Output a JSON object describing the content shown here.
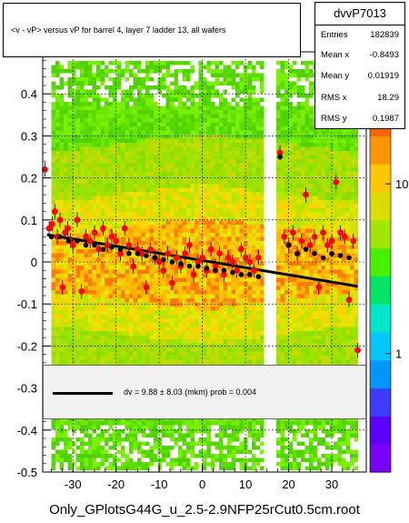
{
  "title": "<v - vP>       versus   vP for barrel 4, layer 7 ladder 13, all wafers",
  "stats": {
    "name": "dvvP7013",
    "rows": [
      {
        "label": "Entries",
        "value": "182839"
      },
      {
        "label": "Mean x",
        "value": "-0.8493"
      },
      {
        "label": "Mean y",
        "value": "0.01919"
      },
      {
        "label": "RMS x",
        "value": "18.29"
      },
      {
        "label": "RMS y",
        "value": "0.1987"
      }
    ]
  },
  "fit_label": "dv =     9.88 ±   8.03 (mkm) prob = 0.004",
  "filename": "Only_GPlotsG44G_u_2.5-2.9NFP25rCut0.5cm.root",
  "chart_data": {
    "type": "scatter",
    "xlim": [
      -37,
      38
    ],
    "ylim": [
      -0.5,
      0.5
    ],
    "x_ticks": [
      -30,
      -20,
      -10,
      0,
      10,
      20,
      30
    ],
    "y_ticks": [
      -0.5,
      -0.4,
      -0.3,
      -0.2,
      -0.1,
      0,
      0.1,
      0.2,
      0.3,
      0.4
    ],
    "z_tick_labels": [
      "1",
      "10"
    ],
    "z_tick_values": [
      1,
      10
    ],
    "grid": true,
    "gap_x": [
      14,
      17
    ],
    "fit": {
      "x": [
        -36,
        36
      ],
      "y": [
        0.065,
        -0.058
      ],
      "color": "#000000"
    },
    "red_points": {
      "x": [
        -36.5,
        -35.5,
        -34.8,
        -34.2,
        -33.6,
        -33,
        -32.4,
        -31.8,
        -31.2,
        -30.6,
        -30,
        -29,
        -28,
        -27,
        -26,
        -25,
        -24,
        -23,
        -22,
        -21,
        -20,
        -19,
        -18,
        -17,
        -16,
        -15,
        -14,
        -13,
        -12,
        -11,
        -10,
        -9,
        -8,
        -7,
        -6,
        -5,
        -4,
        -3,
        -2,
        -1,
        0,
        1,
        2,
        3,
        4,
        5,
        6,
        7,
        8,
        9,
        10,
        11,
        12,
        13,
        18,
        19,
        20,
        21,
        22,
        23,
        24,
        25,
        26,
        27,
        28,
        29,
        30,
        31,
        32,
        33,
        34,
        35,
        36
      ],
      "y": [
        0.22,
        0.08,
        0.09,
        0.12,
        0.06,
        0.1,
        -0.06,
        0.07,
        0.08,
        0.05,
        0.04,
        0.1,
        -0.07,
        0.06,
        0.05,
        0.07,
        0.03,
        0.08,
        0.04,
        0.06,
        0.05,
        0.02,
        0.08,
        0.04,
        -0.01,
        0.03,
        0.02,
        -0.06,
        0.03,
        0.01,
        0.0,
        -0.02,
        0.02,
        -0.05,
        0.01,
        -0.01,
        0.02,
        0.04,
        -0.03,
        0.0,
        0.01,
        -0.02,
        0.03,
        -0.01,
        0.02,
        -0.03,
        0.01,
        0.0,
        -0.02,
        0.03,
        0.01,
        0.0,
        -0.02,
        0.01,
        0.26,
        0.06,
        0.04,
        0.07,
        0.02,
        0.05,
        0.16,
        0.04,
        0.06,
        -0.06,
        0.07,
        0.04,
        0.05,
        0.19,
        0.07,
        0.06,
        -0.09,
        0.05,
        -0.21
      ]
    },
    "black_points": {
      "x": [
        -35,
        -33,
        -31,
        -29,
        -27,
        -25,
        -23,
        -21,
        -19,
        -17,
        -15,
        -13,
        -11,
        -9,
        -7,
        -5,
        -3,
        -1,
        1,
        3,
        5,
        7,
        9,
        11,
        13,
        18,
        20,
        22,
        24,
        26,
        28,
        30,
        32,
        34
      ],
      "y": [
        0.06,
        0.06,
        0.05,
        0.05,
        0.04,
        0.04,
        0.03,
        0.035,
        0.03,
        0.02,
        0.02,
        0.015,
        0.01,
        0.005,
        0.0,
        -0.005,
        -0.01,
        -0.01,
        -0.015,
        -0.02,
        -0.02,
        -0.025,
        -0.03,
        -0.03,
        -0.035,
        0.25,
        0.04,
        0.02,
        0.03,
        0.02,
        0.01,
        0.02,
        0.015,
        0.01
      ]
    }
  }
}
